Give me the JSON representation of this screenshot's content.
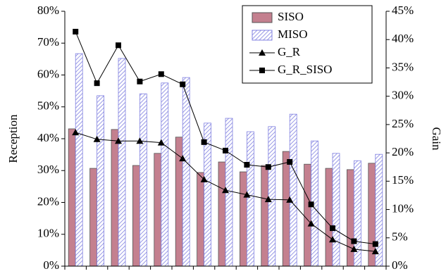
{
  "chart_data": {
    "type": "bar-line",
    "y_label": "Reception",
    "y2_label": "Gain",
    "categories": [
      null,
      null,
      null,
      null,
      null,
      null,
      null,
      null,
      null,
      null,
      null,
      null,
      null,
      null,
      null
    ],
    "ylim": [
      0,
      80
    ],
    "yticks": [
      {
        "value": 0,
        "label": "0%"
      },
      {
        "value": 10,
        "label": "10%"
      },
      {
        "value": 20,
        "label": "20%"
      },
      {
        "value": 30,
        "label": "30%"
      },
      {
        "value": 40,
        "label": "40%"
      },
      {
        "value": 50,
        "label": "50%"
      },
      {
        "value": 60,
        "label": "60%"
      },
      {
        "value": 70,
        "label": "70%"
      },
      {
        "value": 80,
        "label": "80%"
      }
    ],
    "y2lim": [
      0,
      45
    ],
    "y2ticks": [
      {
        "value": 0,
        "label": "0%"
      },
      {
        "value": 5,
        "label": "5%"
      },
      {
        "value": 10,
        "label": "10%"
      },
      {
        "value": 15,
        "label": "15%"
      },
      {
        "value": 20,
        "label": "20%"
      },
      {
        "value": 25,
        "label": "25%"
      },
      {
        "value": 30,
        "label": "30%"
      },
      {
        "value": 35,
        "label": "35%"
      },
      {
        "value": 40,
        "label": "40%"
      },
      {
        "value": 45,
        "label": "45%"
      }
    ],
    "legend": "upper right",
    "series": [
      {
        "name": "SISO",
        "kind": "bar",
        "color": "#c4808f",
        "fill_style": "solid",
        "values": [
          43.1,
          30.7,
          42.9,
          31.6,
          35.4,
          40.5,
          29.4,
          32.7,
          29.6,
          31.6,
          36.0,
          32.0,
          30.7,
          30.3,
          32.3
        ]
      },
      {
        "name": "MISO",
        "kind": "bar",
        "color": "#8080e0",
        "fill_style": "hatched",
        "values": [
          66.7,
          53.5,
          65.2,
          54.1,
          57.5,
          59.2,
          44.9,
          46.4,
          42.2,
          43.8,
          47.7,
          39.3,
          35.4,
          33.1,
          35.1
        ]
      },
      {
        "name": "G_R",
        "kind": "line",
        "axis": "y2",
        "color": "#000000",
        "marker": "triangle",
        "values": [
          23.6,
          22.4,
          22.1,
          22.1,
          21.8,
          19.0,
          15.3,
          13.4,
          12.6,
          11.8,
          11.7,
          7.5,
          4.7,
          3.0,
          2.6
        ]
      },
      {
        "name": "G_R_SISO",
        "kind": "line",
        "axis": "y2",
        "color": "#000000",
        "marker": "square",
        "values": [
          41.4,
          32.3,
          39.0,
          32.6,
          33.9,
          32.1,
          21.9,
          20.4,
          17.9,
          17.5,
          18.4,
          10.9,
          6.7,
          4.4,
          3.9
        ]
      }
    ]
  }
}
